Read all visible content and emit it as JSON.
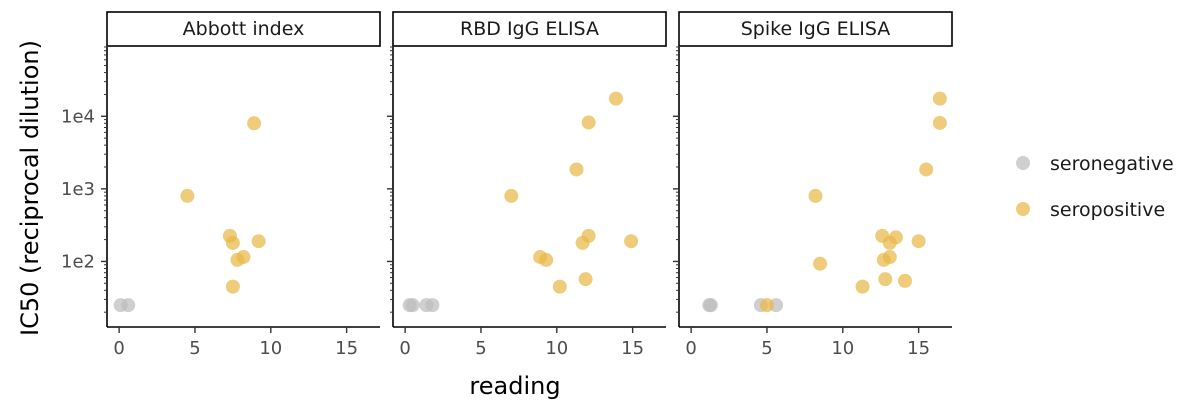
{
  "chart_data": {
    "type": "scatter",
    "xlabel": "reading",
    "ylabel": "IC50 (reciprocal dilution)",
    "xlim": [
      -0.8,
      17.2
    ],
    "ylim": [
      12.5,
      90000
    ],
    "y_scale": "log",
    "x_ticks": [
      0,
      5,
      10,
      15
    ],
    "x_tick_labels": [
      "0",
      "5",
      "10",
      "15"
    ],
    "y_ticks": [
      100,
      1000,
      10000
    ],
    "y_tick_labels": [
      "1e2",
      "1e3",
      "1e4"
    ],
    "legend": {
      "position": "right",
      "entries": [
        {
          "label": "seronegative",
          "color": "#bdbdbd"
        },
        {
          "label": "seropositive",
          "color": "#e8b84a"
        }
      ]
    },
    "panels": [
      {
        "title": "Abbott index",
        "points": [
          {
            "x": 0.1,
            "y": 25,
            "group": "seronegative"
          },
          {
            "x": 0.6,
            "y": 25,
            "group": "seronegative"
          },
          {
            "x": 4.5,
            "y": 800,
            "group": "seropositive"
          },
          {
            "x": 8.9,
            "y": 8000,
            "group": "seropositive"
          },
          {
            "x": 7.3,
            "y": 225,
            "group": "seropositive"
          },
          {
            "x": 7.5,
            "y": 180,
            "group": "seropositive"
          },
          {
            "x": 9.2,
            "y": 190,
            "group": "seropositive"
          },
          {
            "x": 8.2,
            "y": 115,
            "group": "seropositive"
          },
          {
            "x": 7.8,
            "y": 105,
            "group": "seropositive"
          },
          {
            "x": 7.5,
            "y": 45,
            "group": "seropositive"
          }
        ]
      },
      {
        "title": "RBD IgG ELISA",
        "points": [
          {
            "x": 0.3,
            "y": 25,
            "group": "seronegative"
          },
          {
            "x": 0.5,
            "y": 25,
            "group": "seronegative"
          },
          {
            "x": 1.4,
            "y": 25,
            "group": "seronegative"
          },
          {
            "x": 1.8,
            "y": 25,
            "group": "seronegative"
          },
          {
            "x": 13.9,
            "y": 17500,
            "group": "seropositive"
          },
          {
            "x": 12.1,
            "y": 8200,
            "group": "seropositive"
          },
          {
            "x": 11.3,
            "y": 1850,
            "group": "seropositive"
          },
          {
            "x": 7.0,
            "y": 800,
            "group": "seropositive"
          },
          {
            "x": 12.1,
            "y": 225,
            "group": "seropositive"
          },
          {
            "x": 11.7,
            "y": 180,
            "group": "seropositive"
          },
          {
            "x": 14.9,
            "y": 190,
            "group": "seropositive"
          },
          {
            "x": 8.9,
            "y": 115,
            "group": "seropositive"
          },
          {
            "x": 9.3,
            "y": 105,
            "group": "seropositive"
          },
          {
            "x": 11.9,
            "y": 57,
            "group": "seropositive"
          },
          {
            "x": 10.2,
            "y": 45,
            "group": "seropositive"
          }
        ]
      },
      {
        "title": "Spike IgG ELISA",
        "points": [
          {
            "x": 1.2,
            "y": 25,
            "group": "seronegative"
          },
          {
            "x": 1.3,
            "y": 25,
            "group": "seronegative"
          },
          {
            "x": 4.6,
            "y": 25,
            "group": "seronegative"
          },
          {
            "x": 5.6,
            "y": 25,
            "group": "seronegative"
          },
          {
            "x": 5.0,
            "y": 25,
            "group": "seropositive"
          },
          {
            "x": 16.4,
            "y": 17500,
            "group": "seropositive"
          },
          {
            "x": 16.4,
            "y": 8100,
            "group": "seropositive"
          },
          {
            "x": 15.5,
            "y": 1850,
            "group": "seropositive"
          },
          {
            "x": 8.2,
            "y": 800,
            "group": "seropositive"
          },
          {
            "x": 12.6,
            "y": 225,
            "group": "seropositive"
          },
          {
            "x": 13.5,
            "y": 215,
            "group": "seropositive"
          },
          {
            "x": 13.1,
            "y": 180,
            "group": "seropositive"
          },
          {
            "x": 15.0,
            "y": 190,
            "group": "seropositive"
          },
          {
            "x": 13.1,
            "y": 115,
            "group": "seropositive"
          },
          {
            "x": 12.7,
            "y": 105,
            "group": "seropositive"
          },
          {
            "x": 8.5,
            "y": 93,
            "group": "seropositive"
          },
          {
            "x": 12.8,
            "y": 57,
            "group": "seropositive"
          },
          {
            "x": 14.1,
            "y": 54,
            "group": "seropositive"
          },
          {
            "x": 11.3,
            "y": 45,
            "group": "seropositive"
          }
        ]
      }
    ]
  }
}
